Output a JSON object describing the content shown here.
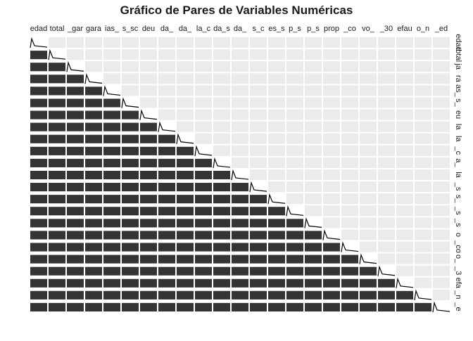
{
  "chart_data": {
    "type": "pairs",
    "title": "Gráfico de Pares de Variables Numéricas",
    "column_labels": [
      "edad",
      "total",
      "_gar",
      "gara",
      "ias_",
      "s_sc",
      "deu",
      "da_",
      "da_",
      "la_c",
      "da_s",
      "da_",
      "s_c",
      "es_s",
      "p_s",
      "p_s",
      "prop",
      "_co",
      "vo_",
      "_30",
      "efau",
      "o_n",
      "_ed"
    ],
    "row_labels": [
      "edad",
      "total",
      "ja",
      "ra",
      "as_",
      "s_",
      "eu",
      "la",
      "la",
      "_c",
      "a_",
      "la",
      "_s",
      "s_",
      "_s",
      "_s",
      "o",
      "_co",
      "o_",
      "_3",
      "efa",
      "_n",
      "_e"
    ]
  }
}
